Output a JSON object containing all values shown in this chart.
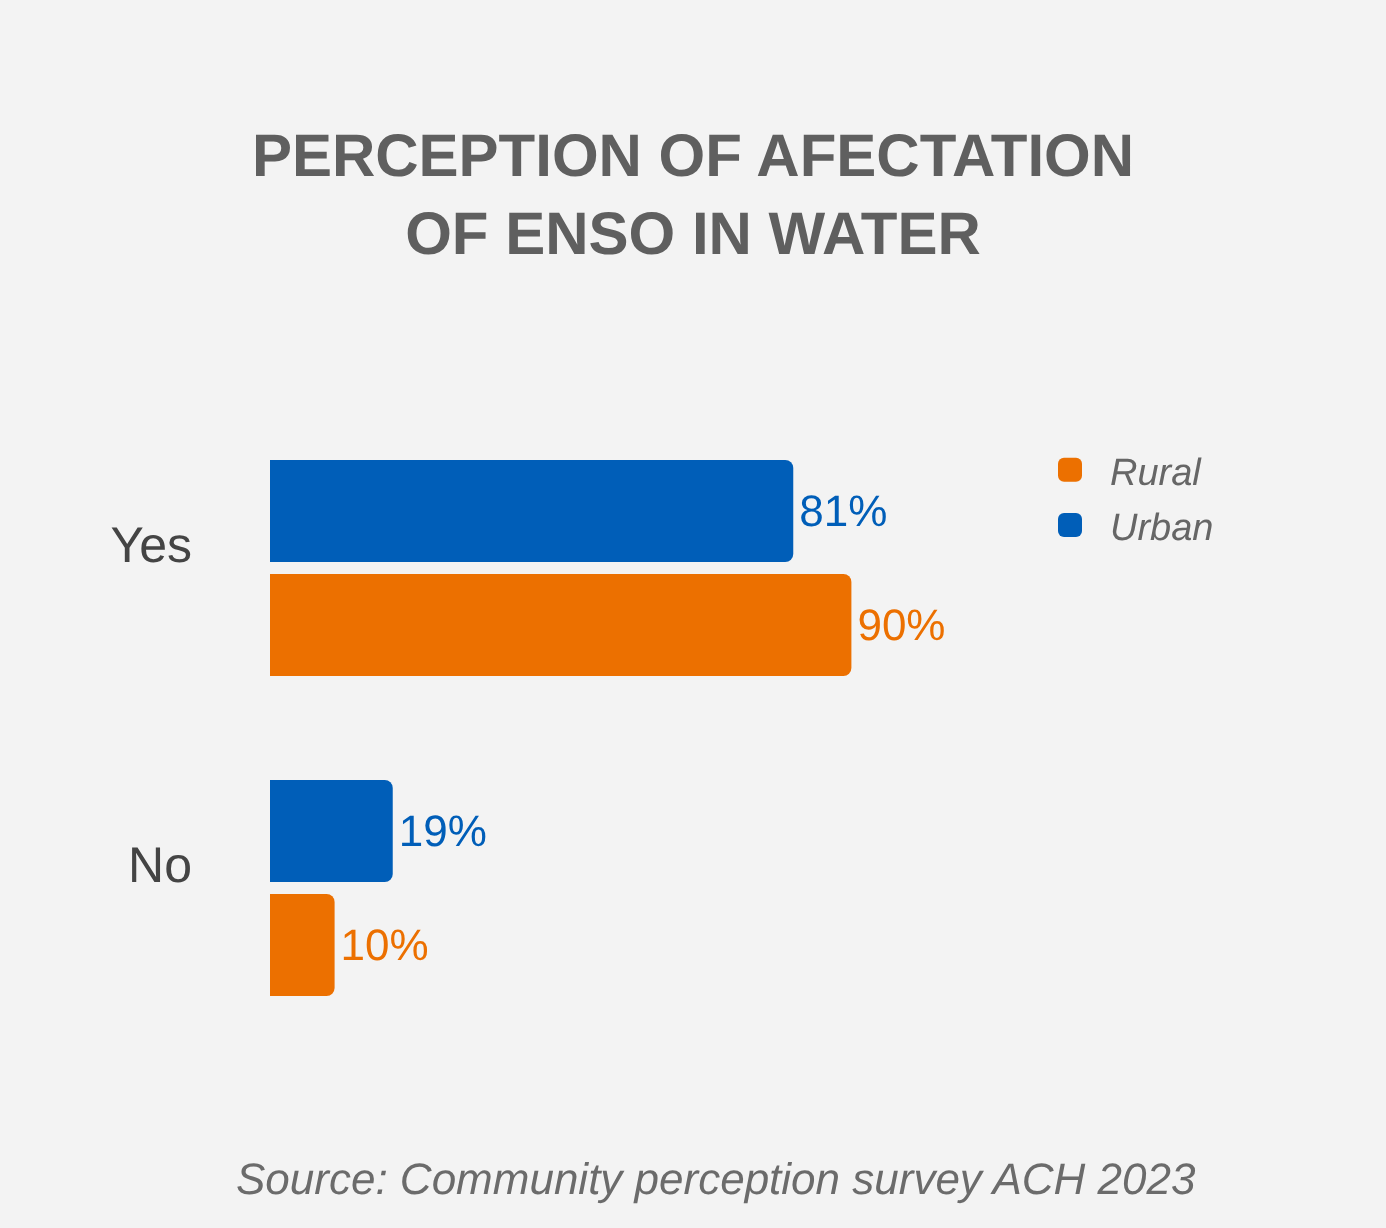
{
  "chart_data": {
    "type": "bar",
    "orientation": "horizontal",
    "title": "PERCEPTION OF AFECTATION OF ENSO IN WATER",
    "categories": [
      "Yes",
      "No"
    ],
    "series": [
      {
        "name": "Rural",
        "color": "#ec7000",
        "values": [
          90,
          10
        ],
        "value_labels": [
          "90%",
          "10%"
        ]
      },
      {
        "name": "Urban",
        "color": "#005eb8",
        "values": [
          81,
          19
        ],
        "value_labels": [
          "81%",
          "19%"
        ]
      }
    ],
    "legend": "top right",
    "grid": false,
    "tick_labels": "y",
    "annotations": [
      "Source: Community perception survey ACH 2023"
    ]
  }
}
